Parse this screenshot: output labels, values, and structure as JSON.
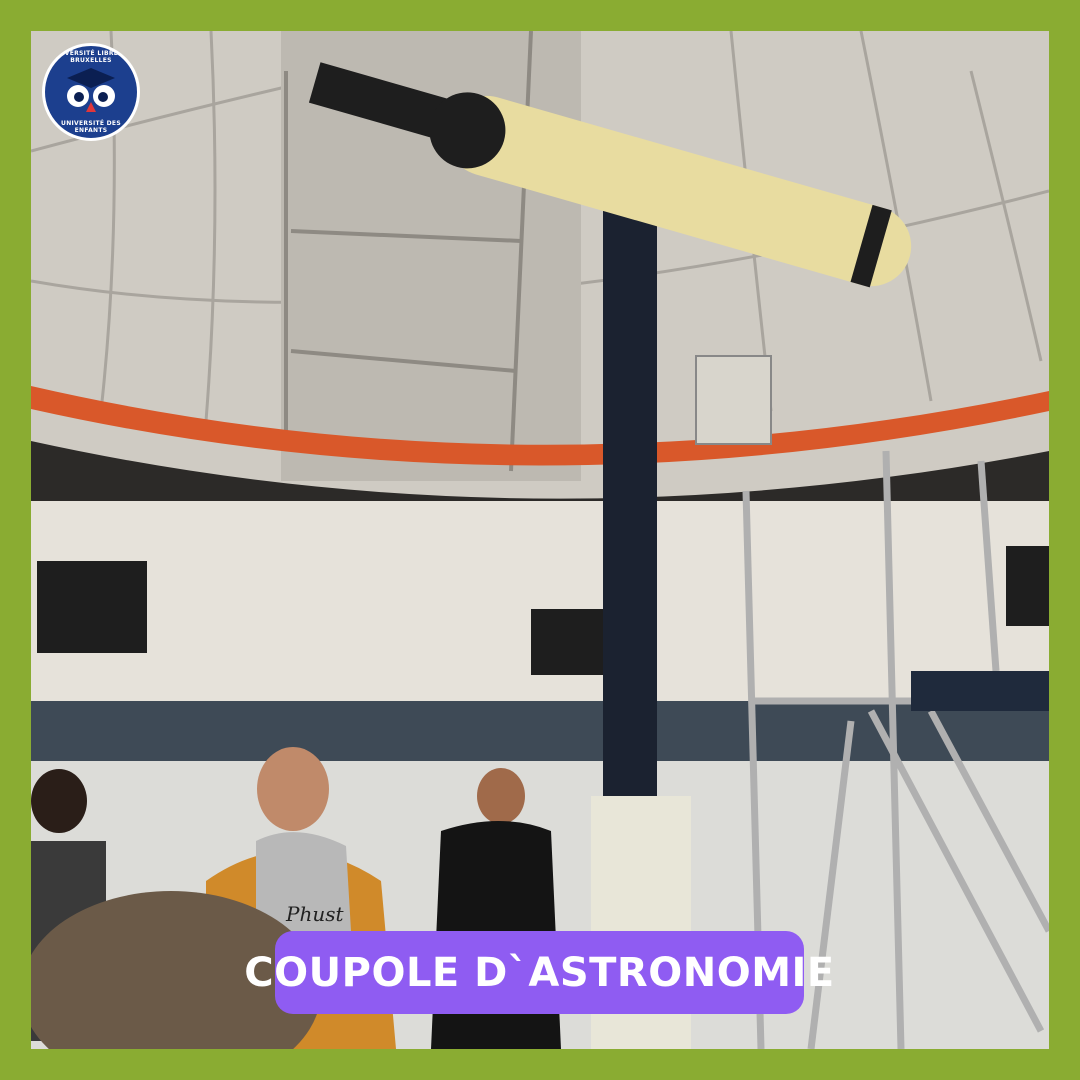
{
  "frame": {
    "border_color": "#8aac32"
  },
  "logo": {
    "icon": "owl-graduate-icon",
    "text_top": "UNIVERSITÉ LIBRE DE BRUXELLES",
    "text_bottom": "UNIVERSITÉ DES ENFANTS",
    "background": "#1c3f8e"
  },
  "photo": {
    "subject": "telescope-in-observatory-dome",
    "hoodie_text": "Phust"
  },
  "caption": {
    "title": "COUPOLE D`ASTRONOMIE",
    "background": "#8f5cf2"
  }
}
